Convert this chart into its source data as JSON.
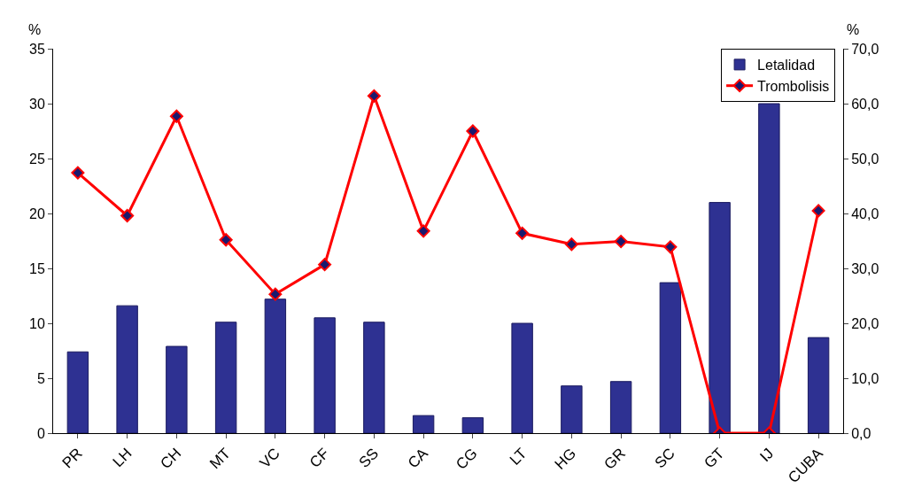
{
  "chart_data": {
    "type": "bar",
    "categories": [
      "PR",
      "LH",
      "CH",
      "MT",
      "VC",
      "CF",
      "SS",
      "CA",
      "CG",
      "LT",
      "HG",
      "GR",
      "SC",
      "GT",
      "IJ",
      "CUBA"
    ],
    "series": [
      {
        "name": "Letalidad",
        "color": "#2e3192",
        "values": [
          7.4,
          11.6,
          7.9,
          10.1,
          12.2,
          10.5,
          10.1,
          1.6,
          1.4,
          10.0,
          4.3,
          4.7,
          13.7,
          21.0,
          30.0,
          8.7
        ]
      },
      {
        "name": "Trombolisis",
        "type": "line",
        "axis": "y2",
        "color": "#ff0000",
        "values": [
          47.4,
          39.6,
          57.7,
          35.2,
          25.3,
          30.7,
          61.4,
          36.8,
          55.0,
          36.4,
          34.4,
          34.9,
          33.9,
          0,
          0,
          40.5
        ]
      }
    ],
    "ylabel": "%",
    "y2label": "%",
    "ylim": [
      0,
      35
    ],
    "yticks": [
      0,
      5,
      10,
      15,
      20,
      25,
      30,
      35
    ],
    "y2lim": [
      0,
      70
    ],
    "y2ticks": [
      {
        "value": 0,
        "label": "0,0"
      },
      {
        "value": 10,
        "label": "10,0"
      },
      {
        "value": 20,
        "label": "20,0"
      },
      {
        "value": 30,
        "label": "30,0"
      },
      {
        "value": 40,
        "label": "40,0"
      },
      {
        "value": 50,
        "label": "50,0"
      },
      {
        "value": 60,
        "label": "60,0"
      },
      {
        "value": 70,
        "label": "70,0"
      }
    ],
    "legend": "top right",
    "marker": "diamond",
    "line_style": "solid"
  }
}
